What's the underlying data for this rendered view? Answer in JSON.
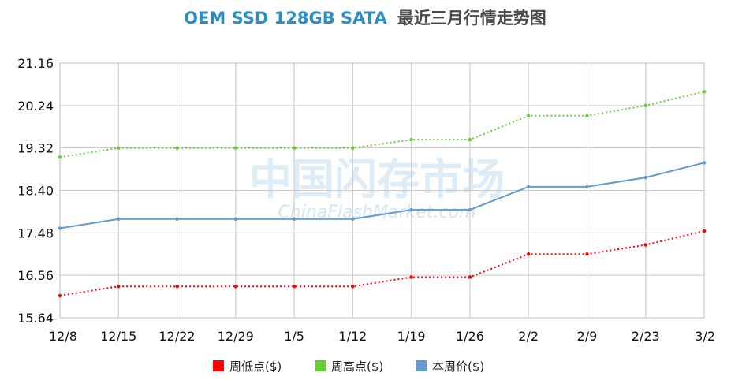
{
  "chart_data": {
    "type": "line",
    "title_main": "OEM SSD 128GB SATA",
    "title_sub": "最近三月行情走势图",
    "categories": [
      "12/8",
      "12/15",
      "12/22",
      "12/29",
      "1/5",
      "1/12",
      "1/19",
      "1/26",
      "2/2",
      "2/9",
      "2/23",
      "3/2"
    ],
    "yticks": [
      "21.16",
      "20.24",
      "19.32",
      "18.40",
      "17.48",
      "16.56",
      "15.64"
    ],
    "ylim": [
      15.64,
      21.16
    ],
    "grid": true,
    "legend_position": "bottom",
    "series": [
      {
        "name": "周低点($)",
        "color": "#ff0000",
        "style": "dotted",
        "values": [
          16.12,
          16.32,
          16.32,
          16.32,
          16.32,
          16.32,
          16.52,
          16.52,
          17.02,
          17.02,
          17.22,
          17.52
        ]
      },
      {
        "name": "周高点($)",
        "color": "#66cc33",
        "style": "dotted",
        "values": [
          19.12,
          19.32,
          19.32,
          19.32,
          19.32,
          19.32,
          19.5,
          19.5,
          20.02,
          20.02,
          20.24,
          20.54
        ]
      },
      {
        "name": "本周价($)",
        "color": "#6699cc",
        "style": "solid",
        "values": [
          17.58,
          17.78,
          17.78,
          17.78,
          17.78,
          17.78,
          17.98,
          17.98,
          18.48,
          18.48,
          18.68,
          19.0
        ]
      }
    ]
  },
  "watermark": {
    "main": "中国闪存市场",
    "sub": "ChinaFlashMarket.com"
  }
}
